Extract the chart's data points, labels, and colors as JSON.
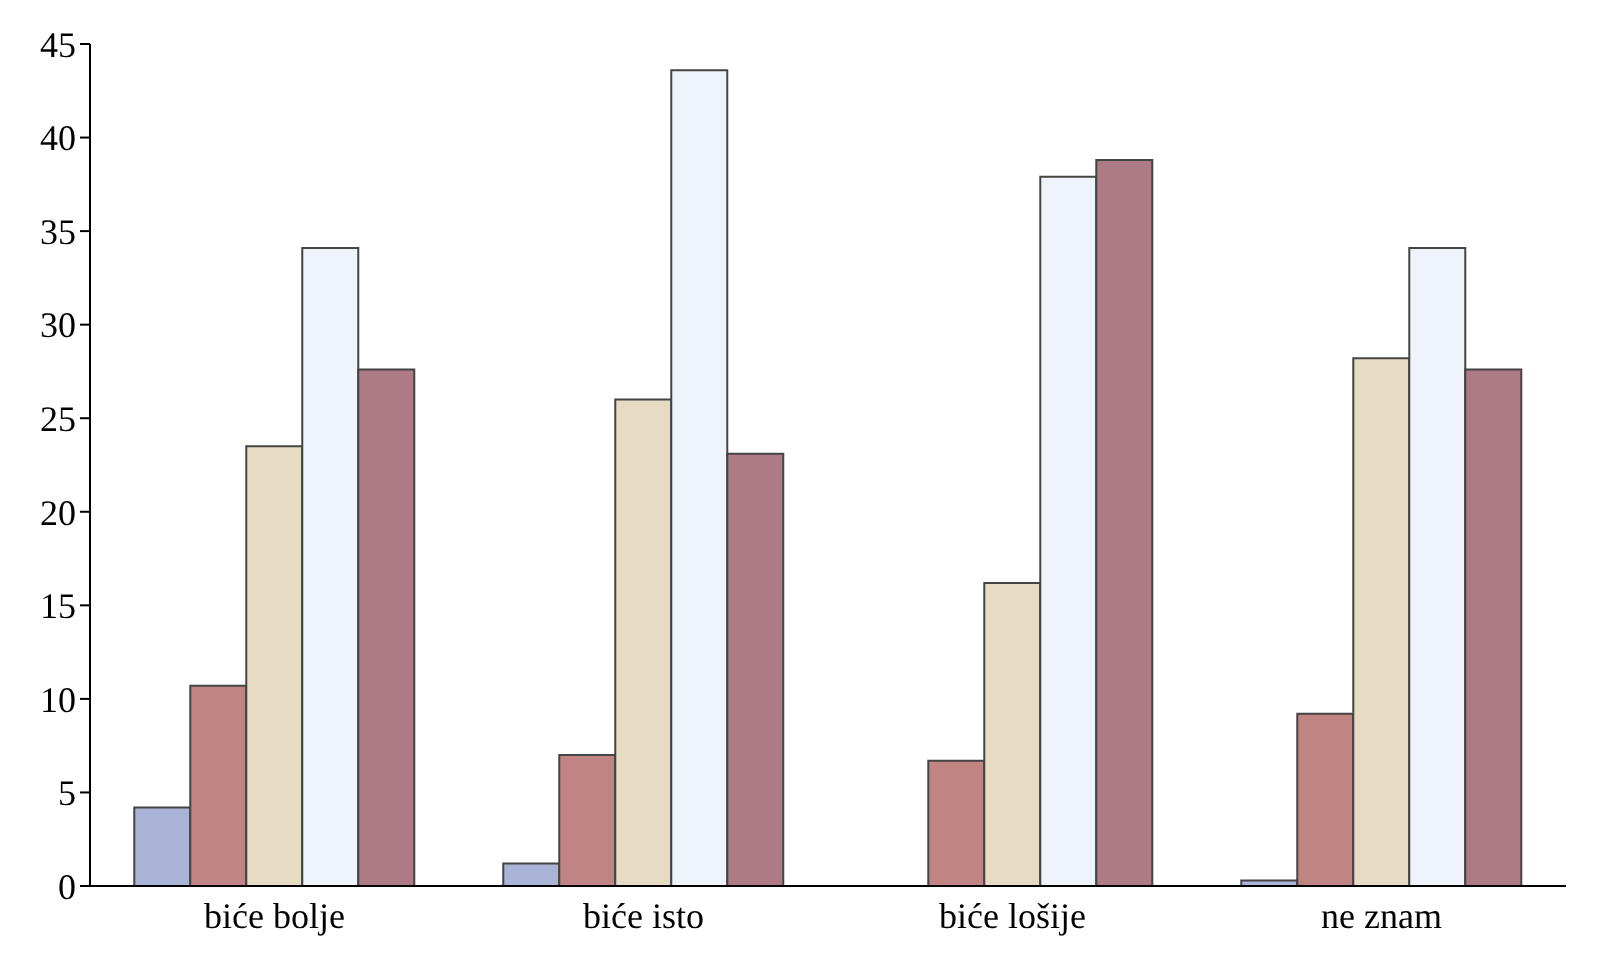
{
  "chart_data": {
    "type": "bar",
    "categories": [
      "biće bolje",
      "biće isto",
      "biće lošije",
      "ne znam"
    ],
    "series": [
      {
        "color": "#a9b4d6",
        "values": [
          4.2,
          1.2,
          0,
          0.3
        ]
      },
      {
        "color": "#c08583",
        "values": [
          10.7,
          7.0,
          6.7,
          9.2
        ]
      },
      {
        "color": "#e6dcc4",
        "values": [
          23.5,
          26.0,
          16.2,
          28.2
        ]
      },
      {
        "color": "#eef4fa",
        "values": [
          34.1,
          43.6,
          37.9,
          34.1
        ]
      },
      {
        "color": "#ae7a85",
        "values": [
          27.6,
          23.1,
          38.8,
          27.6
        ]
      }
    ],
    "ylim": [
      0,
      45
    ],
    "yticks": [
      0,
      5,
      10,
      15,
      20,
      25,
      30,
      35,
      40,
      45
    ],
    "grid": false,
    "legend": false
  }
}
